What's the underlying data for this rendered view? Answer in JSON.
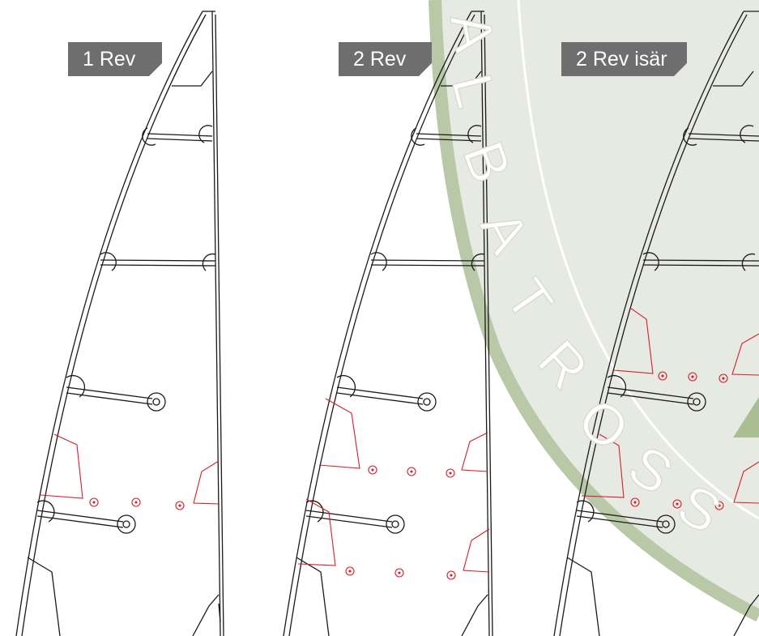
{
  "panels": [
    {
      "label": "1 Rev"
    },
    {
      "label": "2 Rev"
    },
    {
      "label": "2 Rev isär"
    }
  ],
  "watermark": {
    "letters": [
      "A",
      "L",
      "B",
      "A",
      "T",
      "R",
      "O",
      "S",
      "S"
    ],
    "color_fill": "#e6e9e1",
    "color_ring": "#b9c9a8"
  },
  "colors": {
    "outline": "#1a1a1a",
    "reef": "#d0202a",
    "label_bg": "#6e6e6e",
    "label_text": "#ffffff"
  }
}
